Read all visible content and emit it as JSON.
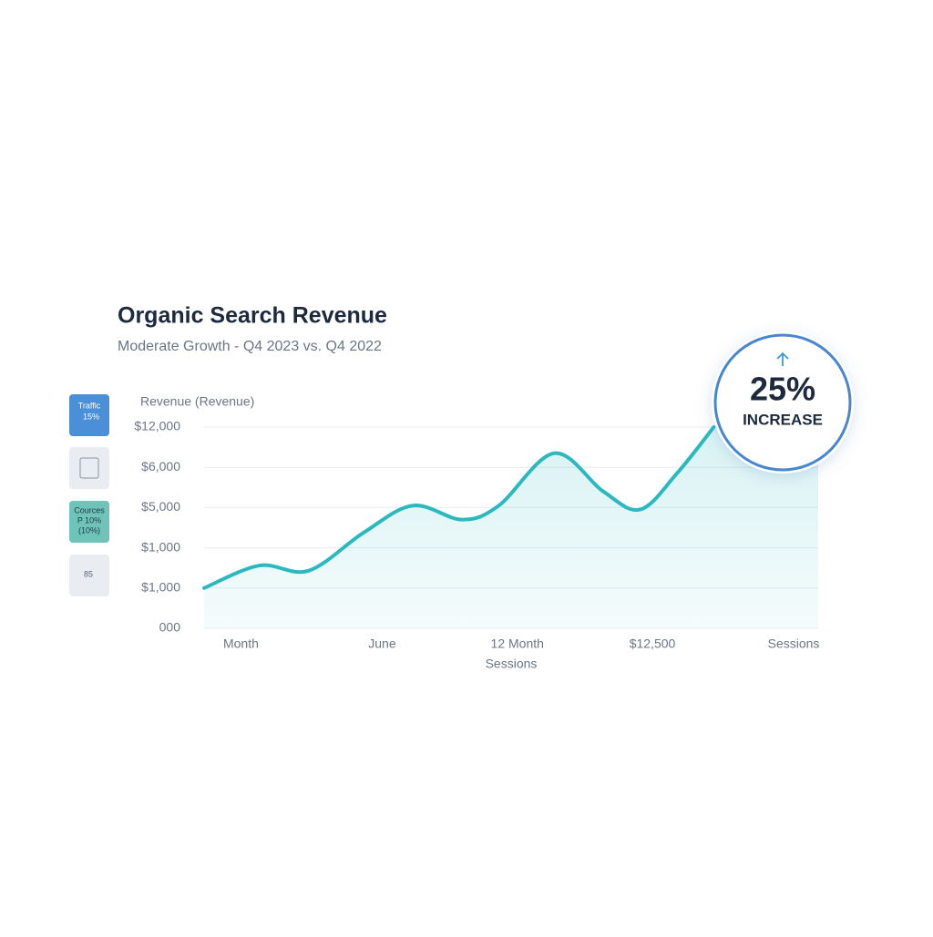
{
  "chart_data": {
    "type": "line",
    "title": "Organic Search Revenue",
    "subtitle": "Moderate Growth - Q4 2023 vs. Q4 2022",
    "y_label": "Revenue (Revenue)",
    "x_label": "Sessions",
    "xlim": [
      0,
      100
    ],
    "ylim": [
      0,
      5
    ],
    "xticks": [
      {
        "value": 6,
        "label": "Month"
      },
      {
        "value": 29,
        "label": "June"
      },
      {
        "value": 51,
        "label": "12 Month"
      },
      {
        "value": 73,
        "label": "$12,500"
      },
      {
        "value": 96,
        "label": "Sessions"
      }
    ],
    "yticks": [
      {
        "value": 0,
        "label": "000"
      },
      {
        "value": 1,
        "label": "$1,000"
      },
      {
        "value": 2,
        "label": "$1,000"
      },
      {
        "value": 3,
        "label": "$5,000"
      },
      {
        "value": 4,
        "label": "$6,000"
      },
      {
        "value": 5,
        "label": "$12,000"
      }
    ],
    "grid": true,
    "series": [
      {
        "color": "#2bb9c0",
        "x": [
          0,
          9,
          17,
          26,
          34,
          42,
          48,
          57,
          65,
          71,
          77,
          83
        ],
        "values": [
          1.0,
          1.56,
          1.43,
          2.38,
          3.05,
          2.7,
          3.05,
          4.35,
          3.4,
          2.95,
          3.85,
          5.0
        ]
      }
    ],
    "badge": {
      "value": "25%",
      "label": "INCREASE"
    },
    "sidebar": [
      {
        "title": "Traffic",
        "text": "15%"
      },
      {
        "title": "Cources",
        "text": "P 10%",
        "note": "(10%)"
      },
      {
        "text": "85"
      }
    ]
  }
}
